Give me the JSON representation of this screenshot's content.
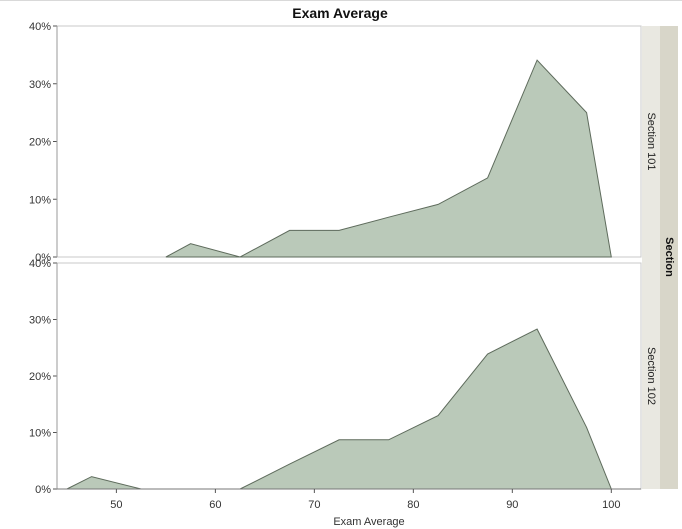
{
  "chart_data": {
    "type": "area",
    "title": "Exam Average",
    "xlabel": "Exam Average",
    "ylabel": "",
    "group_label": "Section",
    "xlim": [
      44,
      103
    ],
    "ylim": [
      0,
      40
    ],
    "x_ticks": [
      50,
      60,
      70,
      80,
      90,
      100
    ],
    "y_ticks": [
      0,
      10,
      20,
      30,
      40
    ],
    "y_tick_labels": [
      "0%",
      "10%",
      "20%",
      "30%",
      "40%"
    ],
    "fill_color": "#bac9b9",
    "line_color": "#5e6b5c",
    "grid": false,
    "panels": [
      {
        "label": "Section 101",
        "x": [
          55,
          57.5,
          62.5,
          67.5,
          72.5,
          77.5,
          82.5,
          87.5,
          92.5,
          97.5,
          100
        ],
        "y": [
          0,
          2.3,
          0,
          4.6,
          4.6,
          6.9,
          9.1,
          13.7,
          34.1,
          25.0,
          0
        ]
      },
      {
        "label": "Section 102",
        "x": [
          45,
          47.5,
          52.5,
          57.5,
          62.5,
          67.5,
          72.5,
          77.5,
          82.5,
          87.5,
          92.5,
          97.5,
          100
        ],
        "y": [
          0,
          2.2,
          0,
          0,
          0,
          4.4,
          8.7,
          8.7,
          13.0,
          23.9,
          28.3,
          10.9,
          0
        ]
      }
    ]
  }
}
